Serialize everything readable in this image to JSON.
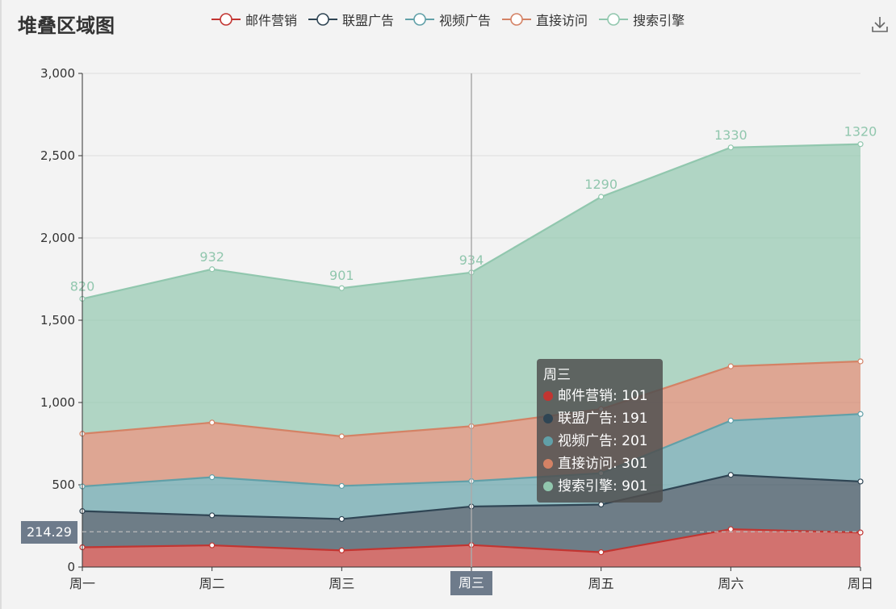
{
  "title": "堆叠区域图",
  "chart_data": {
    "type": "area",
    "stacked": true,
    "categories": [
      "周一",
      "周二",
      "周三",
      "周三",
      "周五",
      "周六",
      "周日"
    ],
    "series": [
      {
        "name": "邮件营销",
        "color": "#c23531",
        "values": [
          120,
          132,
          101,
          134,
          90,
          230,
          210
        ]
      },
      {
        "name": "联盟广告",
        "color": "#2f4554",
        "values": [
          220,
          182,
          191,
          234,
          290,
          330,
          310
        ]
      },
      {
        "name": "视频广告",
        "color": "#61a0a8",
        "values": [
          150,
          232,
          201,
          154,
          190,
          330,
          410
        ]
      },
      {
        "name": "直接访问",
        "color": "#d48265",
        "values": [
          320,
          332,
          301,
          334,
          390,
          330,
          320
        ]
      },
      {
        "name": "搜索引擎",
        "color": "#91c7ae",
        "values": [
          820,
          932,
          901,
          934,
          1290,
          1330,
          1320
        ]
      }
    ],
    "yticks": [
      "0",
      "500",
      "1,000",
      "1,500",
      "2,000",
      "2,500",
      "3,000"
    ],
    "ylim": [
      0,
      3000
    ],
    "top_labels": [
      "820",
      "932",
      "901",
      "934",
      "1290",
      "1330",
      "1320"
    ],
    "grid": true,
    "legend_position": "top-center"
  },
  "tooltip": {
    "title": "周三",
    "rows": [
      {
        "label": "邮件营销: 101",
        "color": "#c23531"
      },
      {
        "label": "联盟广告: 191",
        "color": "#2f4554"
      },
      {
        "label": "视频广告: 201",
        "color": "#61a0a8"
      },
      {
        "label": "直接访问: 301",
        "color": "#d48265"
      },
      {
        "label": "搜索引擎: 901",
        "color": "#91c7ae"
      }
    ]
  },
  "pointer": {
    "y_label": "214.29",
    "x_label": "周三"
  },
  "toolbox": {
    "download_icon": "download-icon"
  }
}
